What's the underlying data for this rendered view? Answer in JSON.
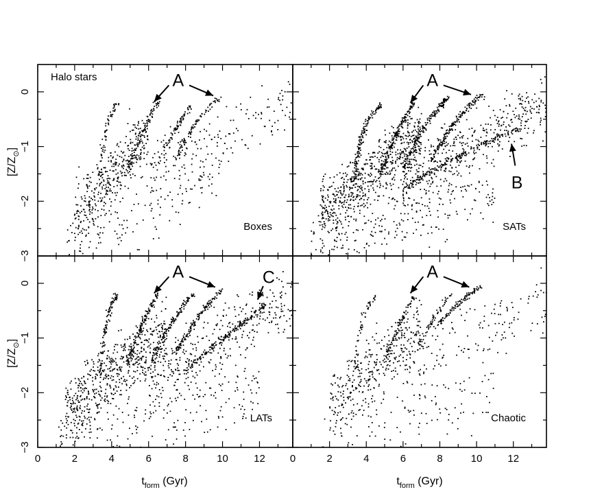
{
  "chart_data": {
    "type": "scatter",
    "shared": {
      "xlabel_main": "t",
      "xlabel_sub": "form",
      "xlabel_unit": " (Gyr)",
      "ylabel_main": "[Z/Z",
      "ylabel_sub": "⊙",
      "ylabel_close": "]",
      "xlim": [
        0,
        13.8
      ],
      "ylim": [
        -3,
        0.5
      ],
      "x_ticks": [
        0,
        2,
        4,
        6,
        8,
        10,
        12
      ],
      "y_ticks": [
        0,
        -1,
        -2,
        -3
      ],
      "grid": false
    },
    "panels": [
      {
        "label": "Boxes",
        "top_left_label": "Halo stars",
        "density": 1000,
        "clouds": [
          {
            "x": [
              2,
              6
            ],
            "y": [
              -2.3,
              -0.8
            ],
            "w": 0.55
          },
          {
            "x": [
              6,
              13.8
            ],
            "y": [
              -1.5,
              -0.2
            ],
            "w": 0.25
          },
          {
            "x": [
              1.5,
              10
            ],
            "y": [
              -2.8,
              -1.6
            ],
            "w": 0.2
          }
        ],
        "tracks": [
          {
            "points": [
              [
                3.4,
                -1.6
              ],
              [
                3.6,
                -0.5
              ],
              [
                4.3,
                -0.2
              ]
            ],
            "n": 60
          },
          {
            "points": [
              [
                4.8,
                -1.5
              ],
              [
                5.6,
                -0.7
              ],
              [
                6.5,
                -0.2
              ]
            ],
            "n": 90
          },
          {
            "points": [
              [
                6.5,
                -1.3
              ],
              [
                7.5,
                -0.6
              ],
              [
                8.3,
                -0.25
              ]
            ],
            "n": 70
          },
          {
            "points": [
              [
                7.5,
                -1.2
              ],
              [
                8.5,
                -0.5
              ],
              [
                9.8,
                -0.1
              ]
            ],
            "n": 90
          }
        ],
        "annotations": [
          {
            "text": "A",
            "x": 7.6,
            "y": 0.22,
            "arrows": [
              [
                [
                  7.1,
                  0.12
                ],
                [
                  6.3,
                  -0.18
                ]
              ],
              [
                [
                  8.2,
                  0.12
                ],
                [
                  9.5,
                  -0.07
                ]
              ]
            ]
          }
        ]
      },
      {
        "label": "SATs",
        "density": 2100,
        "clouds": [
          {
            "x": [
              1.5,
              7
            ],
            "y": [
              -2.2,
              -0.8
            ],
            "w": 0.5
          },
          {
            "x": [
              6,
              13.8
            ],
            "y": [
              -1.6,
              -0.2
            ],
            "w": 0.3
          },
          {
            "x": [
              1,
              11
            ],
            "y": [
              -2.9,
              -1.8
            ],
            "w": 0.2
          }
        ],
        "tracks": [
          {
            "points": [
              [
                3.4,
                -1.6
              ],
              [
                3.6,
                -0.5
              ],
              [
                4.8,
                -0.25
              ]
            ],
            "n": 130
          },
          {
            "points": [
              [
                4.8,
                -1.5
              ],
              [
                5.6,
                -0.7
              ],
              [
                6.6,
                -0.2
              ]
            ],
            "n": 150
          },
          {
            "points": [
              [
                6,
                -1.4
              ],
              [
                7.2,
                -0.5
              ],
              [
                8.5,
                -0.1
              ]
            ],
            "n": 150
          },
          {
            "points": [
              [
                7.5,
                -1.3
              ],
              [
                8.6,
                -0.5
              ],
              [
                10.3,
                -0.05
              ]
            ],
            "n": 160
          },
          {
            "points": [
              [
                6,
                -1.8
              ],
              [
                9,
                -1.1
              ],
              [
                12.5,
                -0.65
              ]
            ],
            "n": 200
          }
        ],
        "annotations": [
          {
            "text": "A",
            "x": 7.6,
            "y": 0.22,
            "arrows": [
              [
                [
                  7.1,
                  0.12
                ],
                [
                  6.4,
                  -0.2
                ]
              ],
              [
                [
                  8.2,
                  0.12
                ],
                [
                  9.7,
                  -0.05
                ]
              ]
            ]
          },
          {
            "text": "B",
            "x": 12.2,
            "y": -1.65,
            "arrows": [
              [
                [
                  12.1,
                  -1.35
                ],
                [
                  11.9,
                  -0.95
                ]
              ]
            ]
          }
        ]
      },
      {
        "label": "LATs",
        "density": 1800,
        "clouds": [
          {
            "x": [
              1.5,
              7
            ],
            "y": [
              -2.3,
              -0.9
            ],
            "w": 0.5
          },
          {
            "x": [
              6,
              13.8
            ],
            "y": [
              -1.8,
              -0.3
            ],
            "w": 0.3
          },
          {
            "x": [
              1,
              12
            ],
            "y": [
              -2.9,
              -1.9
            ],
            "w": 0.2
          }
        ],
        "tracks": [
          {
            "points": [
              [
                3.4,
                -1.7
              ],
              [
                3.6,
                -0.5
              ],
              [
                4.3,
                -0.2
              ]
            ],
            "n": 100
          },
          {
            "points": [
              [
                4.8,
                -1.5
              ],
              [
                5.6,
                -0.7
              ],
              [
                6.5,
                -0.2
              ]
            ],
            "n": 130
          },
          {
            "points": [
              [
                6.2,
                -1.4
              ],
              [
                7.3,
                -0.6
              ],
              [
                8.4,
                -0.2
              ]
            ],
            "n": 120
          },
          {
            "points": [
              [
                7.4,
                -1.3
              ],
              [
                8.6,
                -0.6
              ],
              [
                10,
                -0.1
              ]
            ],
            "n": 140
          },
          {
            "points": [
              [
                8,
                -1.6
              ],
              [
                10,
                -1
              ],
              [
                12.3,
                -0.4
              ]
            ],
            "n": 160
          }
        ],
        "annotations": [
          {
            "text": "A",
            "x": 7.6,
            "y": 0.22,
            "arrows": [
              [
                [
                  7.1,
                  0.12
                ],
                [
                  6.3,
                  -0.18
                ]
              ],
              [
                [
                  8.2,
                  0.12
                ],
                [
                  9.6,
                  -0.07
                ]
              ]
            ]
          },
          {
            "text": "C",
            "x": 12.5,
            "y": 0.12,
            "arrows": [
              [
                [
                  12.2,
                  -0.05
                ],
                [
                  11.9,
                  -0.3
                ]
              ]
            ]
          }
        ]
      },
      {
        "label": "Chaotic",
        "density": 900,
        "clouds": [
          {
            "x": [
              2,
              7
            ],
            "y": [
              -2.2,
              -0.8
            ],
            "w": 0.55
          },
          {
            "x": [
              6,
              13.8
            ],
            "y": [
              -1.6,
              -0.3
            ],
            "w": 0.25
          },
          {
            "x": [
              1.5,
              11
            ],
            "y": [
              -2.9,
              -1.9
            ],
            "w": 0.2
          }
        ],
        "tracks": [
          {
            "points": [
              [
                3.4,
                -1.6
              ],
              [
                3.6,
                -0.5
              ],
              [
                4.5,
                -0.25
              ]
            ],
            "n": 50
          },
          {
            "points": [
              [
                5,
                -1.4
              ],
              [
                5.8,
                -0.7
              ],
              [
                6.6,
                -0.25
              ]
            ],
            "n": 80
          },
          {
            "points": [
              [
                6.8,
                -1.2
              ],
              [
                7.6,
                -0.6
              ],
              [
                8.6,
                -0.2
              ]
            ],
            "n": 60
          },
          {
            "points": [
              [
                7.8,
                -0.8
              ],
              [
                8.8,
                -0.4
              ],
              [
                10.2,
                -0.05
              ]
            ],
            "n": 100
          }
        ],
        "annotations": [
          {
            "text": "A",
            "x": 7.6,
            "y": 0.22,
            "arrows": [
              [
                [
                  7.1,
                  0.12
                ],
                [
                  6.4,
                  -0.18
                ]
              ],
              [
                [
                  8.2,
                  0.12
                ],
                [
                  9.6,
                  -0.07
                ]
              ]
            ]
          }
        ]
      }
    ]
  }
}
